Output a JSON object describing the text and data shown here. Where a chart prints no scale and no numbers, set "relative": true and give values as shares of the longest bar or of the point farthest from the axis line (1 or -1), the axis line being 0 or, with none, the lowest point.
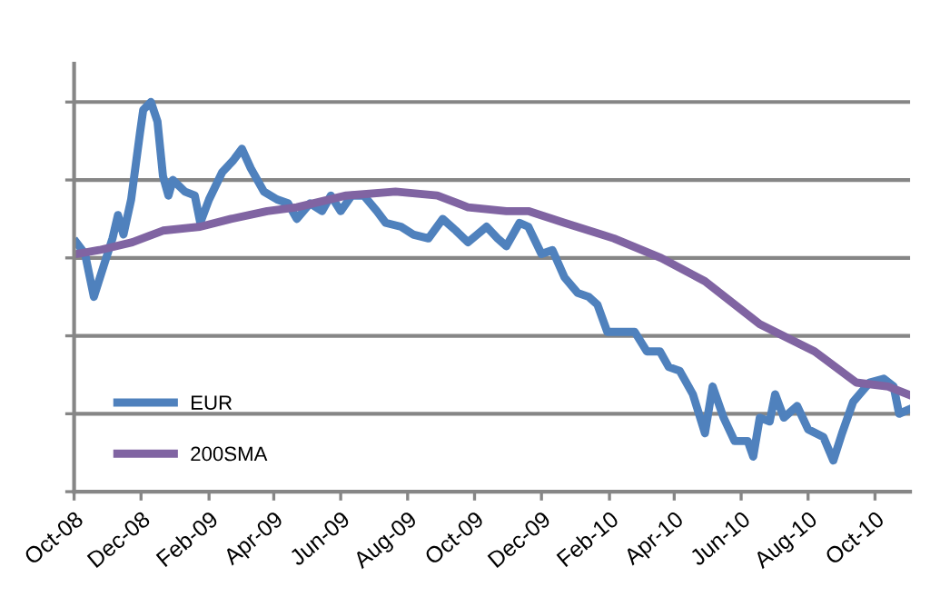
{
  "chart_data": {
    "type": "line",
    "relative": true,
    "grid": "y",
    "legend": "bottom left",
    "tick_labels": "x",
    "line_style": "solid",
    "marker": "none",
    "xlim": [
      "2008-10-01",
      "2010-11-02"
    ],
    "xticks": [
      {
        "value": "2008-10-01",
        "label": "Oct-08"
      },
      {
        "value": "2008-12-01",
        "label": "Dec-08"
      },
      {
        "value": "2009-02-01",
        "label": "Feb-09"
      },
      {
        "value": "2009-04-01",
        "label": "Apr-09"
      },
      {
        "value": "2009-06-01",
        "label": "Jun-09"
      },
      {
        "value": "2009-08-01",
        "label": "Aug-09"
      },
      {
        "value": "2009-10-01",
        "label": "Oct-09"
      },
      {
        "value": "2009-12-01",
        "label": "Dec-09"
      },
      {
        "value": "2010-02-01",
        "label": "Feb-10"
      },
      {
        "value": "2010-04-01",
        "label": "Apr-10"
      },
      {
        "value": "2010-06-01",
        "label": "Jun-10"
      },
      {
        "value": "2010-08-01",
        "label": "Aug-10"
      },
      {
        "value": "2010-10-01",
        "label": "Oct-10"
      }
    ],
    "series": [
      {
        "name": "EUR",
        "color": "#4f81bd",
        "x": [
          "2008-10-03",
          "2008-10-11",
          "2008-10-19",
          "2008-10-28",
          "2008-11-05",
          "2008-11-10",
          "2008-11-15",
          "2008-11-22",
          "2008-11-30",
          "2008-12-03",
          "2008-12-10",
          "2008-12-16",
          "2008-12-21",
          "2008-12-26",
          "2008-12-30",
          "2009-01-10",
          "2009-01-19",
          "2009-01-24",
          "2009-02-01",
          "2009-02-13",
          "2009-02-23",
          "2009-03-03",
          "2009-03-11",
          "2009-03-23",
          "2009-04-04",
          "2009-04-14",
          "2009-04-22",
          "2009-05-04",
          "2009-05-15",
          "2009-05-23",
          "2009-06-01",
          "2009-06-11",
          "2009-06-22",
          "2009-07-04",
          "2009-07-12",
          "2009-07-26",
          "2009-08-06",
          "2009-08-20",
          "2009-09-02",
          "2009-09-14",
          "2009-09-25",
          "2009-10-12",
          "2009-10-22",
          "2009-10-30",
          "2009-11-11",
          "2009-11-19",
          "2009-12-01",
          "2009-12-11",
          "2009-12-22",
          "2010-01-03",
          "2010-01-13",
          "2010-01-21",
          "2010-01-30",
          "2010-02-10",
          "2010-02-24",
          "2010-03-07",
          "2010-03-19",
          "2010-03-27",
          "2010-04-06",
          "2010-04-18",
          "2010-04-29",
          "2010-05-06",
          "2010-05-16",
          "2010-05-26",
          "2010-06-07",
          "2010-06-12",
          "2010-06-18",
          "2010-06-27",
          "2010-07-02",
          "2010-07-10",
          "2010-07-22",
          "2010-08-01",
          "2010-08-15",
          "2010-08-24",
          "2010-09-01",
          "2010-09-11",
          "2010-09-26",
          "2010-10-09",
          "2010-10-18",
          "2010-10-23",
          "2010-10-31"
        ],
        "values": [
          0.64,
          0.61,
          0.5,
          0.58,
          0.65,
          0.71,
          0.66,
          0.75,
          0.92,
          0.98,
          1.0,
          0.95,
          0.81,
          0.76,
          0.8,
          0.77,
          0.76,
          0.69,
          0.75,
          0.82,
          0.85,
          0.88,
          0.83,
          0.77,
          0.75,
          0.74,
          0.7,
          0.74,
          0.72,
          0.76,
          0.72,
          0.76,
          0.76,
          0.72,
          0.69,
          0.68,
          0.66,
          0.65,
          0.7,
          0.67,
          0.64,
          0.68,
          0.65,
          0.63,
          0.69,
          0.68,
          0.61,
          0.62,
          0.55,
          0.51,
          0.5,
          0.48,
          0.41,
          0.41,
          0.41,
          0.36,
          0.36,
          0.32,
          0.31,
          0.25,
          0.15,
          0.27,
          0.19,
          0.13,
          0.13,
          0.09,
          0.19,
          0.18,
          0.25,
          0.19,
          0.22,
          0.16,
          0.14,
          0.08,
          0.15,
          0.23,
          0.28,
          0.29,
          0.27,
          0.2,
          0.21
        ]
      },
      {
        "name": "200SMA",
        "color": "#8064a2",
        "x": [
          "2008-10-03",
          "2008-10-24",
          "2008-11-23",
          "2008-12-21",
          "2009-01-24",
          "2009-02-21",
          "2009-03-26",
          "2009-04-22",
          "2009-06-06",
          "2009-07-21",
          "2009-08-28",
          "2009-09-25",
          "2009-10-30",
          "2009-11-19",
          "2009-12-22",
          "2010-02-05",
          "2010-03-20",
          "2010-04-29",
          "2010-06-18",
          "2010-08-07",
          "2010-09-14",
          "2010-10-13",
          "2010-10-31"
        ],
        "values": [
          0.61,
          0.62,
          0.64,
          0.67,
          0.68,
          0.7,
          0.72,
          0.73,
          0.76,
          0.77,
          0.76,
          0.73,
          0.72,
          0.72,
          0.69,
          0.65,
          0.6,
          0.54,
          0.43,
          0.36,
          0.28,
          0.27,
          0.25
        ]
      }
    ]
  }
}
